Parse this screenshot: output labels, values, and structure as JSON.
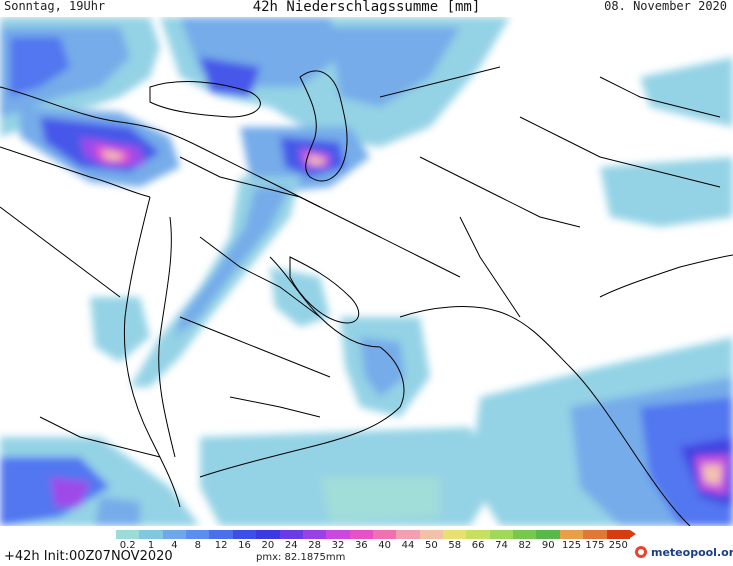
{
  "header": {
    "left": "Sonntag, 19Uhr",
    "title": "42h Niederschlagssumme [mm]",
    "right": "08. November 2020"
  },
  "legend": {
    "ticks": [
      "0.2",
      "1",
      "4",
      "8",
      "12",
      "16",
      "20",
      "24",
      "28",
      "32",
      "36",
      "40",
      "44",
      "50",
      "58",
      "66",
      "74",
      "82",
      "90",
      "125",
      "175",
      "250"
    ],
    "colors": [
      "#9cdcd8",
      "#7fc8e0",
      "#6ea8e8",
      "#5a8ef0",
      "#4a70f0",
      "#3c50e8",
      "#3a3ae0",
      "#6a3ae8",
      "#9a40e8",
      "#c848e0",
      "#e850c8",
      "#f070b0",
      "#f0a0b0",
      "#f4c0a8",
      "#e8e070",
      "#c8e060",
      "#a0d858",
      "#78c850",
      "#58b848",
      "#e8a048",
      "#e07838",
      "#d83b10"
    ]
  },
  "footer": {
    "init": "+42h Init:00Z07NOV2020",
    "pmx": "pmx: 82.1875mm",
    "brand": "meteopool.org"
  },
  "map": {
    "background": "#ffffff",
    "border_color": "#000000"
  }
}
